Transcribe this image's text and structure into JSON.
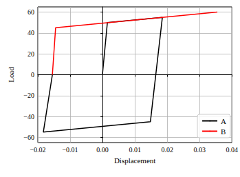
{
  "chart_data": {
    "type": "line",
    "xlabel": "Displacement",
    "ylabel": "Load",
    "xlim": [
      -0.02,
      0.04
    ],
    "xticks": [
      {
        "value": -0.02,
        "label": "−0.02"
      },
      {
        "value": -0.01,
        "label": "−0.01"
      },
      {
        "value": 0,
        "label": "0.00"
      },
      0.01,
      0.02,
      0.03,
      0.04
    ],
    "ylim": [
      -65,
      65
    ],
    "yticks": [
      {
        "value": -60,
        "label": "−60"
      },
      {
        "value": -40,
        "label": "−40"
      },
      {
        "value": -20,
        "label": "−20"
      },
      0,
      20,
      40,
      60
    ],
    "grid": true,
    "legend": "lower right",
    "series": [
      {
        "name": "A",
        "color": "#000000",
        "x": [
          0,
          0.0015,
          0.0185,
          0.0148,
          -0.0183,
          -0.0155
        ],
        "values": [
          1,
          50,
          55,
          -45,
          -55,
          0
        ]
      },
      {
        "name": "B",
        "color": "#ff0000",
        "x": [
          -0.0155,
          -0.0145,
          0.0355
        ],
        "values": [
          0,
          45,
          60
        ]
      }
    ]
  }
}
